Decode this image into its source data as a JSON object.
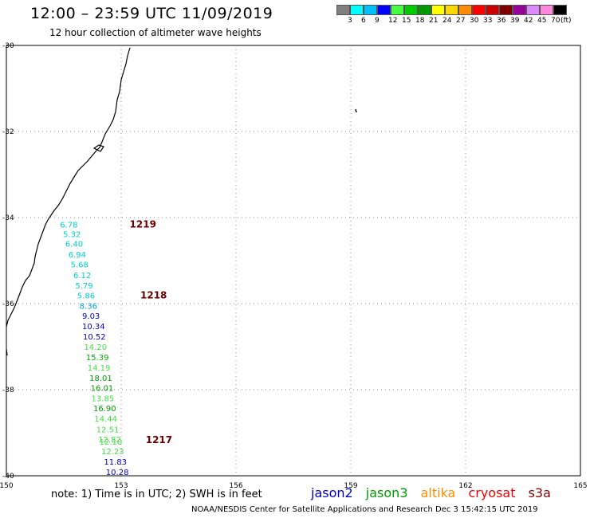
{
  "title": "12:00 – 23:59 UTC 11/09/2019",
  "subtitle": "12 hour collection of altimeter wave heights",
  "legend": {
    "colors": [
      "#808080",
      "#00ffff",
      "#00bfff",
      "#0000ff",
      "#44ff44",
      "#00cc00",
      "#009900",
      "#ffff00",
      "#ffd700",
      "#ff8c00",
      "#ff0000",
      "#cc0000",
      "#800000",
      "#990099",
      "#dd88ff",
      "#ff88dd",
      "#000000"
    ],
    "ticks": [
      "3",
      "6",
      "9",
      "12",
      "15",
      "18",
      "21",
      "24",
      "27",
      "30",
      "33",
      "36",
      "39",
      "42",
      "45",
      "70"
    ],
    "unit": "(ft)"
  },
  "axes": {
    "lon_ticks": [
      "150",
      "153",
      "156",
      "159",
      "162",
      "165"
    ],
    "lat_ticks": [
      "-30",
      "-32",
      "-34",
      "-36",
      "-38",
      "-40"
    ]
  },
  "passes": [
    {
      "label": "1219",
      "lon": 153.22,
      "lat": -34.16
    },
    {
      "label": "1218",
      "lon": 153.5,
      "lat": -35.81
    },
    {
      "label": "1217",
      "lon": 153.64,
      "lat": -39.17
    }
  ],
  "points": [
    {
      "v": "6.78",
      "lon": 151.4,
      "lat": -34.16,
      "c": "#00cccc"
    },
    {
      "v": "5.32",
      "lon": 151.48,
      "lat": -34.38,
      "c": "#00cccc"
    },
    {
      "v": "6.40",
      "lon": 151.54,
      "lat": -34.6,
      "c": "#00cccc"
    },
    {
      "v": "6.94",
      "lon": 151.62,
      "lat": -34.85,
      "c": "#00cccc"
    },
    {
      "v": "5.68",
      "lon": 151.68,
      "lat": -35.08,
      "c": "#00cccc"
    },
    {
      "v": "6.12",
      "lon": 151.75,
      "lat": -35.33,
      "c": "#00cccc"
    },
    {
      "v": "5.79",
      "lon": 151.8,
      "lat": -35.57,
      "c": "#00cccc"
    },
    {
      "v": "5.86",
      "lon": 151.85,
      "lat": -35.81,
      "c": "#00cccc"
    },
    {
      "v": "8.36",
      "lon": 151.91,
      "lat": -36.05,
      "c": "#00a0e0"
    },
    {
      "v": "9.03",
      "lon": 151.98,
      "lat": -36.28,
      "c": "#0000cc"
    },
    {
      "v": "10.34",
      "lon": 151.98,
      "lat": -36.52,
      "c": "#0000cc"
    },
    {
      "v": "10.52",
      "lon": 152.0,
      "lat": -36.76,
      "c": "#0000cc"
    },
    {
      "v": "14.20",
      "lon": 152.03,
      "lat": -37.0,
      "c": "#44dd44"
    },
    {
      "v": "15.39",
      "lon": 152.08,
      "lat": -37.24,
      "c": "#00aa00"
    },
    {
      "v": "14.19",
      "lon": 152.12,
      "lat": -37.48,
      "c": "#44dd44"
    },
    {
      "v": "18.01",
      "lon": 152.17,
      "lat": -37.72,
      "c": "#009900"
    },
    {
      "v": "16.01",
      "lon": 152.2,
      "lat": -37.95,
      "c": "#009900"
    },
    {
      "v": "13.85",
      "lon": 152.22,
      "lat": -38.19,
      "c": "#44dd44"
    },
    {
      "v": "16.90",
      "lon": 152.27,
      "lat": -38.43,
      "c": "#009900"
    },
    {
      "v": "14.44",
      "lon": 152.3,
      "lat": -38.67,
      "c": "#44dd44"
    },
    {
      "v": "12.51",
      "lon": 152.35,
      "lat": -38.92,
      "c": "#44dd44"
    },
    {
      "v": "12.82",
      "lon": 152.4,
      "lat": -39.15,
      "c": "#44dd44"
    },
    {
      "v": "12.10",
      "lon": 152.43,
      "lat": -39.2,
      "c": "#44dd44"
    },
    {
      "v": "12.23",
      "lon": 152.48,
      "lat": -39.43,
      "c": "#44dd44"
    },
    {
      "v": "11.83",
      "lon": 152.55,
      "lat": -39.67,
      "c": "#0000cc"
    },
    {
      "v": "10.28",
      "lon": 152.6,
      "lat": -39.91,
      "c": "#0000cc"
    }
  ],
  "note": "note:  1) Time is in UTC; 2) SWH is in feet",
  "satellites": [
    {
      "name": "jason2",
      "color": "#0000cc"
    },
    {
      "name": "jason3",
      "color": "#009900"
    },
    {
      "name": "altika",
      "color": "#ff8c00"
    },
    {
      "name": "cryosat",
      "color": "#ee0000"
    },
    {
      "name": "s3a",
      "color": "#880000"
    }
  ],
  "footer": "NOAA/NESDIS Center for Satellite Applications and Research    Dec  3 15:42:15 UTC 2019"
}
